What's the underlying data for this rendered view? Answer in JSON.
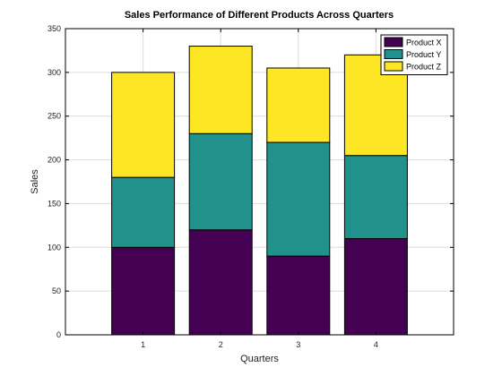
{
  "chart_data": {
    "type": "bar",
    "stacked": true,
    "title": "Sales Performance of Different Products Across Quarters",
    "xlabel": "Quarters",
    "ylabel": "Sales",
    "categories": [
      "1",
      "2",
      "3",
      "4"
    ],
    "series": [
      {
        "name": "Product X",
        "values": [
          100,
          120,
          90,
          110
        ],
        "color": "#440154"
      },
      {
        "name": "Product Y",
        "values": [
          80,
          110,
          130,
          95
        ],
        "color": "#21918c"
      },
      {
        "name": "Product Z",
        "values": [
          120,
          100,
          85,
          115
        ],
        "color": "#fde725"
      }
    ],
    "xlim": [
      0,
      5
    ],
    "ylim": [
      0,
      350
    ],
    "yticks": [
      0,
      50,
      100,
      150,
      200,
      250,
      300,
      350
    ],
    "grid": true,
    "legend": "top-right"
  }
}
